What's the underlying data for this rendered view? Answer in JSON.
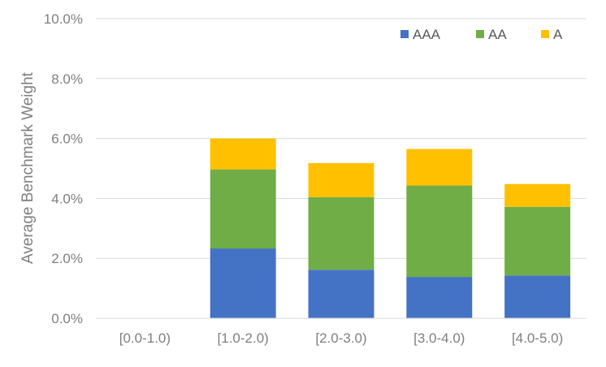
{
  "chart_data": {
    "type": "bar",
    "stacked": true,
    "title": "",
    "xlabel": "",
    "ylabel": "Average Benchmark Weight",
    "ylim": [
      0,
      10
    ],
    "y_ticks": [
      "0.0%",
      "2.0%",
      "4.0%",
      "6.0%",
      "8.0%",
      "10.0%"
    ],
    "y_tick_values": [
      0,
      2,
      4,
      6,
      8,
      10
    ],
    "grid": true,
    "legend_position": "top-right",
    "categories": [
      "[0.0-1.0)",
      "[1.0-2.0)",
      "[2.0-3.0)",
      "[3.0-4.0)",
      "[4.0-5.0)"
    ],
    "series": [
      {
        "name": "AAA",
        "color": "#4472c4",
        "values": [
          0,
          2.33,
          1.62,
          1.38,
          1.43
        ]
      },
      {
        "name": "AA",
        "color": "#70ad47",
        "values": [
          0,
          2.64,
          2.42,
          3.05,
          2.29
        ]
      },
      {
        "name": "A",
        "color": "#ffc000",
        "values": [
          0,
          1.03,
          1.14,
          1.22,
          0.76
        ]
      }
    ]
  }
}
